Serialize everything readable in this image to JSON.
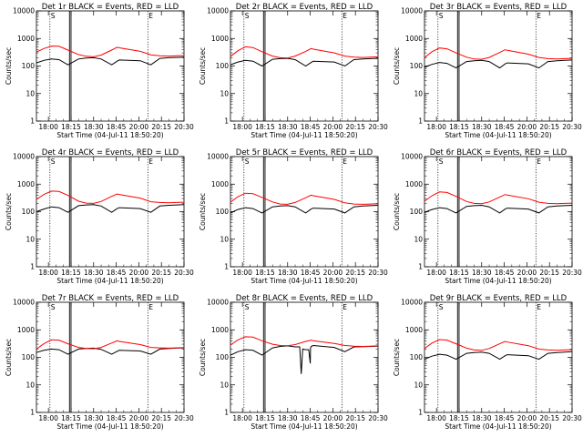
{
  "figure": {
    "ylabel": "Counts/sec",
    "xlabel": "Start Time (04-Jul-11 18:50:20)"
  },
  "axis": {
    "scale": "log",
    "ylim": [
      1,
      10000
    ],
    "yticks": [
      {
        "value": 1,
        "label": "1"
      },
      {
        "value": 10,
        "label": "10"
      },
      {
        "value": 100,
        "label": "100"
      },
      {
        "value": 1000,
        "label": "1000"
      },
      {
        "value": 10000,
        "label": "10000"
      }
    ],
    "xlim": [
      "17:52",
      "20:30"
    ],
    "xticks": [
      "18:00",
      "18:15",
      "18:30",
      "18:45",
      "20:00",
      "20:15",
      "20:30"
    ],
    "dotted_lines_at": [
      "18:01",
      "20:06"
    ],
    "solid_lines_at": [
      "18:14",
      "18:15"
    ],
    "marker_labels": [
      "S",
      "E"
    ],
    "colors": {
      "events": "#000000",
      "lld": "#ff0000"
    }
  },
  "chart_data": [
    {
      "type": "line",
      "title": "Det 1r BLACK = Events, RED = LLD",
      "series": [
        {
          "name": "BLACK = Events",
          "color": "#000000",
          "x": [
            "17:52",
            "17:57",
            "18:02",
            "18:07",
            "18:13",
            "18:20",
            "18:25",
            "18:30",
            "18:35",
            "18:42",
            "18:48",
            "18:55",
            "20:01",
            "20:08",
            "20:14",
            "20:20",
            "20:25",
            "20:30"
          ],
          "y": [
            130,
            160,
            180,
            170,
            110,
            180,
            195,
            200,
            180,
            110,
            150,
            165,
            155,
            110,
            190,
            200,
            205,
            210
          ]
        },
        {
          "name": "RED = LLD",
          "color": "#ff0000",
          "x": [
            "17:52",
            "17:57",
            "18:02",
            "18:07",
            "18:13",
            "18:20",
            "18:25",
            "18:30",
            "18:35",
            "18:42",
            "18:48",
            "18:55",
            "20:01",
            "20:08",
            "20:14",
            "20:20",
            "20:25",
            "20:30"
          ],
          "y": [
            320,
            430,
            530,
            520,
            380,
            260,
            225,
            215,
            250,
            380,
            480,
            460,
            340,
            255,
            235,
            230,
            235,
            240
          ]
        }
      ]
    },
    {
      "type": "line",
      "title": "Det 2r BLACK = Events, RED = LLD",
      "series": [
        {
          "name": "BLACK = Events",
          "color": "#000000",
          "x": [
            "17:52",
            "17:57",
            "18:02",
            "18:07",
            "18:13",
            "18:20",
            "18:25",
            "18:30",
            "18:35",
            "18:42",
            "18:48",
            "18:55",
            "20:01",
            "20:08",
            "20:14",
            "20:20",
            "20:25",
            "20:30"
          ],
          "y": [
            110,
            140,
            160,
            150,
            100,
            175,
            185,
            190,
            170,
            100,
            135,
            150,
            140,
            100,
            170,
            180,
            185,
            190
          ]
        },
        {
          "name": "RED = LLD",
          "color": "#ff0000",
          "x": [
            "17:52",
            "17:57",
            "18:02",
            "18:07",
            "18:13",
            "18:20",
            "18:25",
            "18:30",
            "18:35",
            "18:42",
            "18:48",
            "18:55",
            "20:01",
            "20:08",
            "20:14",
            "20:20",
            "20:25",
            "20:30"
          ],
          "y": [
            220,
            360,
            500,
            470,
            330,
            230,
            200,
            195,
            230,
            340,
            430,
            410,
            300,
            230,
            210,
            205,
            210,
            215
          ]
        }
      ]
    },
    {
      "type": "line",
      "title": "Det 3r BLACK = Events, RED = LLD",
      "series": [
        {
          "name": "BLACK = Events",
          "color": "#000000",
          "x": [
            "17:52",
            "17:57",
            "18:02",
            "18:07",
            "18:13",
            "18:20",
            "18:25",
            "18:30",
            "18:35",
            "18:42",
            "18:48",
            "18:55",
            "20:01",
            "20:08",
            "20:14",
            "20:20",
            "20:25",
            "20:30"
          ],
          "y": [
            90,
            115,
            135,
            125,
            85,
            145,
            155,
            160,
            145,
            85,
            120,
            130,
            120,
            85,
            145,
            155,
            160,
            165
          ]
        },
        {
          "name": "RED = LLD",
          "color": "#ff0000",
          "x": [
            "17:52",
            "17:57",
            "18:02",
            "18:07",
            "18:13",
            "18:20",
            "18:25",
            "18:30",
            "18:35",
            "18:42",
            "18:48",
            "18:55",
            "20:01",
            "20:08",
            "20:14",
            "20:20",
            "20:25",
            "20:30"
          ],
          "y": [
            200,
            330,
            450,
            420,
            300,
            210,
            180,
            175,
            205,
            310,
            390,
            370,
            270,
            205,
            185,
            180,
            185,
            190
          ]
        }
      ]
    },
    {
      "type": "line",
      "title": "Det 4r BLACK = Events, RED = LLD",
      "series": [
        {
          "name": "BLACK = Events",
          "color": "#000000",
          "x": [
            "17:52",
            "17:57",
            "18:02",
            "18:07",
            "18:13",
            "18:20",
            "18:25",
            "18:30",
            "18:35",
            "18:42",
            "18:48",
            "18:55",
            "20:01",
            "20:08",
            "20:14",
            "20:20",
            "20:25",
            "20:30"
          ],
          "y": [
            100,
            125,
            150,
            140,
            95,
            165,
            175,
            180,
            160,
            95,
            130,
            140,
            130,
            95,
            160,
            170,
            175,
            180
          ]
        },
        {
          "name": "RED = LLD",
          "color": "#ff0000",
          "x": [
            "17:52",
            "17:57",
            "18:02",
            "18:07",
            "18:13",
            "18:20",
            "18:25",
            "18:30",
            "18:35",
            "18:42",
            "18:48",
            "18:55",
            "20:01",
            "20:08",
            "20:14",
            "20:20",
            "20:25",
            "20:30"
          ],
          "y": [
            280,
            420,
            560,
            540,
            390,
            240,
            205,
            200,
            235,
            360,
            440,
            420,
            310,
            230,
            215,
            210,
            215,
            220
          ]
        }
      ]
    },
    {
      "type": "line",
      "title": "Det 5r BLACK = Events, RED = LLD",
      "series": [
        {
          "name": "BLACK = Events",
          "color": "#000000",
          "x": [
            "17:52",
            "17:57",
            "18:02",
            "18:07",
            "18:13",
            "18:20",
            "18:25",
            "18:30",
            "18:35",
            "18:42",
            "18:48",
            "18:55",
            "20:01",
            "20:08",
            "20:14",
            "20:20",
            "20:25",
            "20:30"
          ],
          "y": [
            90,
            120,
            140,
            130,
            90,
            150,
            160,
            165,
            150,
            90,
            125,
            135,
            125,
            90,
            150,
            160,
            165,
            170
          ]
        },
        {
          "name": "RED = LLD",
          "color": "#ff0000",
          "x": [
            "17:52",
            "17:57",
            "18:02",
            "18:07",
            "18:13",
            "18:20",
            "18:25",
            "18:30",
            "18:35",
            "18:42",
            "18:48",
            "18:55",
            "20:01",
            "20:08",
            "20:14",
            "20:20",
            "20:25",
            "20:30"
          ],
          "y": [
            220,
            350,
            470,
            450,
            330,
            225,
            190,
            185,
            215,
            320,
            400,
            380,
            280,
            210,
            190,
            185,
            190,
            195
          ]
        }
      ]
    },
    {
      "type": "line",
      "title": "Det 6r BLACK = Events, RED = LLD",
      "series": [
        {
          "name": "BLACK = Events",
          "color": "#000000",
          "x": [
            "17:52",
            "17:57",
            "18:02",
            "18:07",
            "18:13",
            "18:20",
            "18:25",
            "18:30",
            "18:35",
            "18:42",
            "18:48",
            "18:55",
            "20:01",
            "20:08",
            "20:14",
            "20:20",
            "20:25",
            "20:30"
          ],
          "y": [
            95,
            120,
            140,
            130,
            90,
            155,
            165,
            170,
            150,
            90,
            125,
            135,
            125,
            90,
            150,
            160,
            165,
            170
          ]
        },
        {
          "name": "RED = LLD",
          "color": "#ff0000",
          "x": [
            "17:52",
            "17:57",
            "18:02",
            "18:07",
            "18:13",
            "18:20",
            "18:25",
            "18:30",
            "18:35",
            "18:42",
            "18:48",
            "18:55",
            "20:01",
            "20:08",
            "20:14",
            "20:20",
            "20:25",
            "20:30"
          ],
          "y": [
            240,
            380,
            520,
            500,
            360,
            235,
            200,
            195,
            225,
            340,
            420,
            400,
            295,
            220,
            200,
            195,
            200,
            205
          ]
        }
      ]
    },
    {
      "type": "line",
      "title": "Det 7r BLACK = Events, RED = LLD",
      "series": [
        {
          "name": "BLACK = Events",
          "color": "#000000",
          "x": [
            "17:52",
            "17:57",
            "18:02",
            "18:07",
            "18:13",
            "18:20",
            "18:25",
            "18:30",
            "18:35",
            "18:42",
            "18:48",
            "18:55",
            "20:01",
            "20:08",
            "20:14",
            "20:20",
            "20:25",
            "20:30"
          ],
          "y": [
            150,
            180,
            200,
            190,
            130,
            200,
            210,
            215,
            195,
            130,
            165,
            180,
            170,
            130,
            200,
            210,
            215,
            220
          ]
        },
        {
          "name": "RED = LLD",
          "color": "#ff0000",
          "x": [
            "17:52",
            "17:57",
            "18:02",
            "18:07",
            "18:13",
            "18:20",
            "18:25",
            "18:30",
            "18:35",
            "18:42",
            "18:48",
            "18:55",
            "20:01",
            "20:08",
            "20:14",
            "20:20",
            "20:25",
            "20:30"
          ],
          "y": [
            200,
            310,
            430,
            420,
            310,
            230,
            210,
            205,
            230,
            330,
            400,
            380,
            290,
            230,
            220,
            215,
            220,
            225
          ]
        }
      ]
    },
    {
      "type": "line",
      "title": "Det 8r BLACK = Events, RED = LLD",
      "series": [
        {
          "name": "BLACK = Events",
          "color": "#000000",
          "x": [
            "17:52",
            "17:57",
            "18:02",
            "18:07",
            "18:13",
            "18:20",
            "18:25",
            "18:30",
            "18:35",
            "18:38",
            "18:39",
            "18:40",
            "18:42",
            "18:44",
            "18:45",
            "18:46",
            "18:48",
            "18:55",
            "20:01",
            "20:08",
            "20:14",
            "20:20",
            "20:25",
            "20:30"
          ],
          "y": [
            120,
            160,
            190,
            180,
            120,
            220,
            250,
            260,
            240,
            240,
            25,
            200,
            190,
            190,
            60,
            220,
            250,
            270,
            230,
            160,
            240,
            245,
            250,
            255
          ]
        },
        {
          "name": "RED = LLD",
          "color": "#ff0000",
          "x": [
            "17:52",
            "17:57",
            "18:02",
            "18:07",
            "18:13",
            "18:20",
            "18:25",
            "18:30",
            "18:35",
            "18:42",
            "18:48",
            "18:55",
            "20:01",
            "20:08",
            "20:14",
            "20:20",
            "20:25",
            "20:30"
          ],
          "y": [
            280,
            430,
            560,
            540,
            400,
            300,
            270,
            265,
            290,
            380,
            420,
            400,
            320,
            270,
            255,
            250,
            255,
            260
          ]
        }
      ]
    },
    {
      "type": "line",
      "title": "Det 9r BLACK = Events, RED = LLD",
      "series": [
        {
          "name": "BLACK = Events",
          "color": "#000000",
          "x": [
            "17:52",
            "17:57",
            "18:02",
            "18:07",
            "18:13",
            "18:20",
            "18:25",
            "18:30",
            "18:35",
            "18:42",
            "18:48",
            "18:55",
            "20:01",
            "20:08",
            "20:14",
            "20:20",
            "20:25",
            "20:30"
          ],
          "y": [
            85,
            110,
            130,
            120,
            85,
            140,
            150,
            155,
            140,
            85,
            115,
            125,
            115,
            85,
            140,
            150,
            155,
            160
          ]
        },
        {
          "name": "RED = LLD",
          "color": "#ff0000",
          "x": [
            "17:52",
            "17:57",
            "18:02",
            "18:07",
            "18:13",
            "18:20",
            "18:25",
            "18:30",
            "18:35",
            "18:42",
            "18:48",
            "18:55",
            "20:01",
            "20:08",
            "20:14",
            "20:20",
            "20:25",
            "20:30"
          ],
          "y": [
            210,
            330,
            440,
            420,
            310,
            215,
            185,
            180,
            210,
            310,
            380,
            360,
            265,
            200,
            185,
            180,
            185,
            190
          ]
        }
      ]
    }
  ]
}
